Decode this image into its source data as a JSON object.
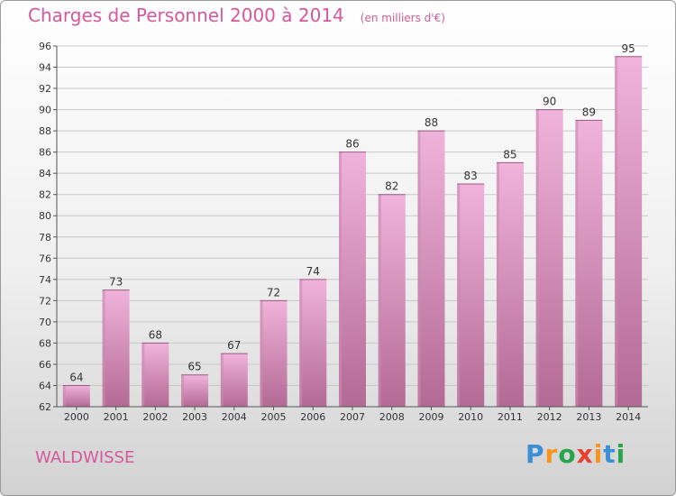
{
  "header": {
    "title": "Charges de Personnel 2000 à 2014",
    "subtitle": "(en milliers d'€)"
  },
  "footer": {
    "commune": "WALDWISSE"
  },
  "logo": {
    "text": "Proxiti",
    "letters": [
      "P",
      "r",
      "o",
      "x",
      "i",
      "t",
      "i"
    ],
    "colors": [
      "#3b8fd6",
      "#f7941d",
      "#2aa44a",
      "#e8402f",
      "#f7941d",
      "#3b8fd6",
      "#2aa44a"
    ]
  },
  "colors": {
    "bar_top": "#f0b3db",
    "bar_bottom": "#b36a95",
    "bar_side": "#c98ab0",
    "accent": "#d6579b"
  },
  "chart_data": {
    "type": "bar",
    "title": "Charges de Personnel 2000 à 2014",
    "subtitle": "(en milliers d'€)",
    "categories": [
      "2000",
      "2001",
      "2002",
      "2003",
      "2004",
      "2005",
      "2006",
      "2007",
      "2008",
      "2009",
      "2010",
      "2011",
      "2012",
      "2013",
      "2014"
    ],
    "values": [
      64,
      73,
      68,
      65,
      67,
      72,
      74,
      86,
      82,
      88,
      83,
      85,
      90,
      89,
      95
    ],
    "ylim": [
      62,
      96
    ],
    "yticks": [
      62,
      64,
      66,
      68,
      70,
      72,
      74,
      76,
      78,
      80,
      82,
      84,
      86,
      88,
      90,
      92,
      94,
      96
    ],
    "grid": true,
    "legend": "none"
  }
}
